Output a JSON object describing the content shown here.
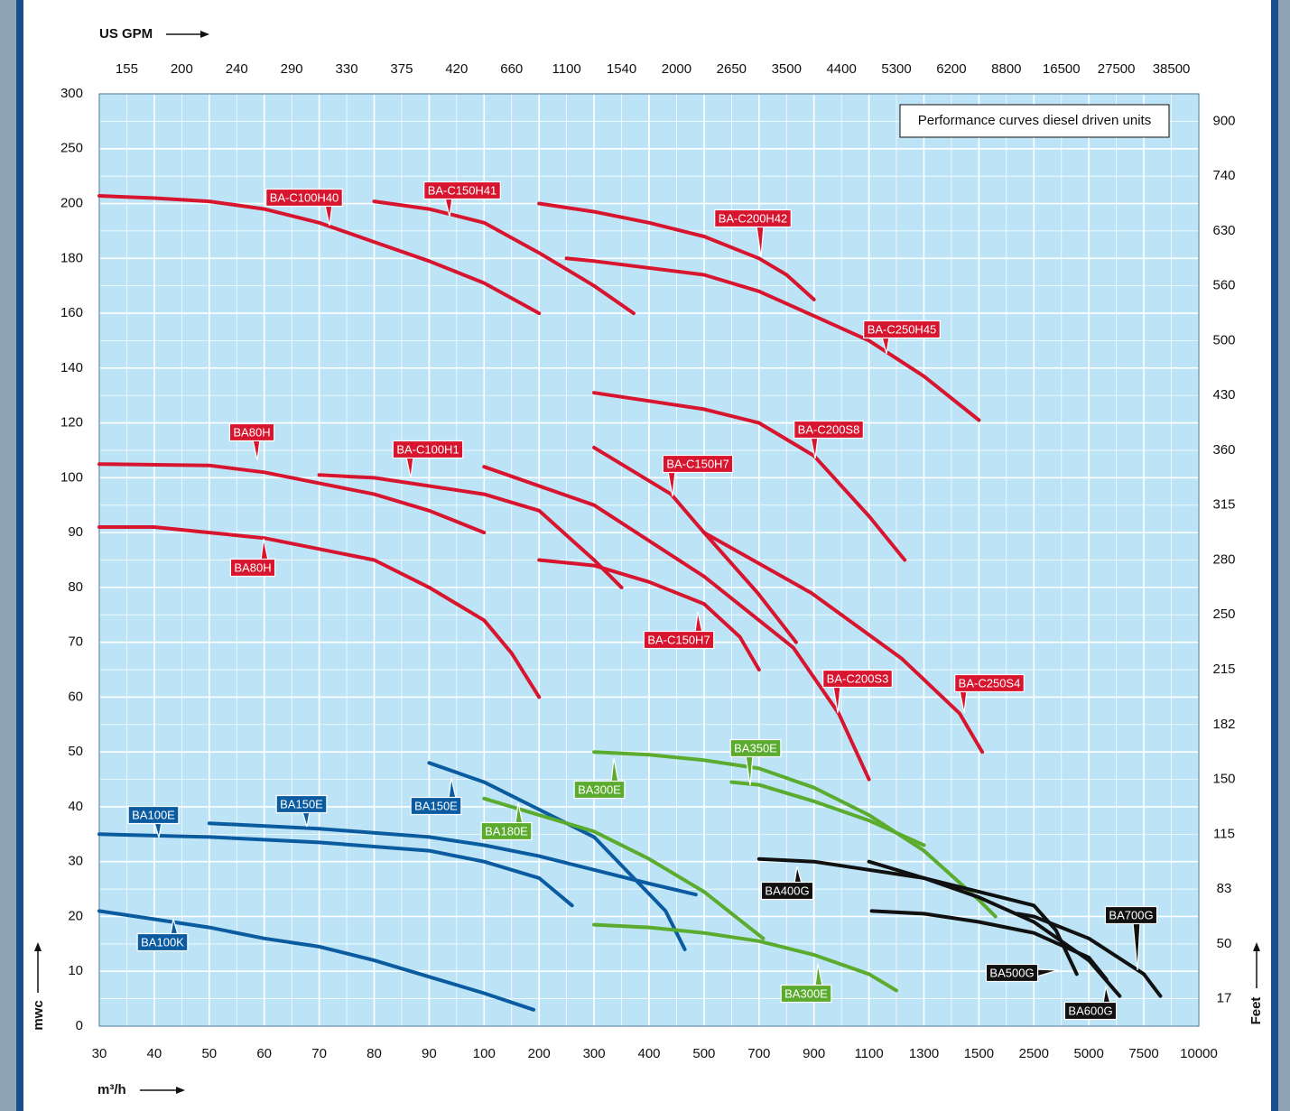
{
  "chart_data": {
    "type": "line",
    "title": "Performance curves diesel driven units",
    "x_label": "m³/h",
    "y_label": "mwc",
    "top_axis_label": "US GPM",
    "right_axis_label": "Feet",
    "x_scale": "segmented",
    "y_scale": "segmented",
    "grid": true,
    "xlim": [
      30,
      10000
    ],
    "ylim": [
      0,
      300
    ],
    "xticks": [
      30,
      40,
      50,
      60,
      70,
      80,
      90,
      100,
      200,
      300,
      400,
      500,
      700,
      900,
      1100,
      1300,
      1500,
      2500,
      5000,
      7500,
      10000
    ],
    "yticks": [
      0,
      10,
      20,
      30,
      40,
      50,
      60,
      70,
      80,
      90,
      100,
      120,
      140,
      160,
      180,
      200,
      250,
      300
    ],
    "gpm_labels": [
      155,
      200,
      240,
      290,
      330,
      375,
      420,
      660,
      1100,
      1540,
      2000,
      2650,
      3500,
      4400,
      5300,
      6200,
      8800,
      16500,
      27500,
      38500
    ],
    "feet_labels": [
      17,
      50,
      83,
      115,
      150,
      182,
      215,
      250,
      280,
      315,
      360,
      430,
      500,
      560,
      630,
      740,
      900
    ],
    "series": [
      {
        "name": "BA-C100H40",
        "color": "#d7152f",
        "x": [
          30,
          40,
          50,
          60,
          70,
          80,
          90,
          100,
          200
        ],
        "values": [
          207,
          205,
          202,
          198,
          193,
          186,
          179,
          171,
          160
        ]
      },
      {
        "name": "BA-C150H41",
        "color": "#d7152f",
        "x": [
          80,
          90,
          100,
          200,
          300,
          372
        ],
        "values": [
          202,
          198,
          193,
          182,
          170,
          160
        ]
      },
      {
        "name": "BA-C200H42",
        "color": "#d7152f",
        "x": [
          200,
          300,
          400,
          500,
          700,
          800,
          900
        ],
        "values": [
          200,
          197,
          193,
          188,
          180,
          174,
          165
        ]
      },
      {
        "name": "BA-C250H45",
        "color": "#d7152f",
        "x": [
          250,
          300,
          500,
          700,
          900,
          1100,
          1300,
          1500
        ],
        "values": [
          180,
          179,
          174,
          168,
          159,
          150,
          137,
          121
        ]
      },
      {
        "name": "BA-C200S8",
        "color": "#d7152f",
        "x": [
          300,
          500,
          700,
          900,
          1100,
          1230
        ],
        "values": [
          131,
          125,
          120,
          108,
          93,
          85
        ]
      },
      {
        "name": "BA80H",
        "color": "#d7152f",
        "x": [
          30,
          50,
          60,
          70,
          80,
          90,
          100
        ],
        "values": [
          105,
          104.5,
          102,
          99,
          97,
          94,
          90
        ]
      },
      {
        "name": "BA-C100H1",
        "color": "#d7152f",
        "x": [
          70,
          80,
          100,
          200,
          300,
          350
        ],
        "values": [
          101,
          100,
          97,
          94,
          85,
          80
        ]
      },
      {
        "name": "BA-C150H7",
        "color": "#d7152f",
        "x": [
          300,
          440,
          500,
          695,
          835
        ],
        "values": [
          111,
          97,
          90,
          79,
          70
        ]
      },
      {
        "name": "BA-C250S4",
        "color": "#d7152f",
        "x": [
          500,
          890,
          1220,
          1430,
          1560
        ],
        "values": [
          90,
          79,
          67,
          57,
          50
        ]
      },
      {
        "name": "BA-C200S3",
        "color": "#d7152f",
        "x": [
          100,
          300,
          500,
          825,
          990,
          1100
        ],
        "values": [
          104,
          95,
          82,
          69,
          57,
          45
        ]
      },
      {
        "name": "BA80H",
        "color": "#d7152f",
        "x": [
          30,
          40,
          50,
          60,
          70,
          80,
          90,
          100,
          150,
          200
        ],
        "values": [
          91,
          91,
          90,
          89,
          87,
          85,
          80,
          74,
          68,
          60
        ]
      },
      {
        "name": "BA-C150H7",
        "color": "#d7152f",
        "x": [
          200,
          300,
          400,
          500,
          630,
          700
        ],
        "values": [
          85,
          84,
          81,
          77,
          71,
          65
        ]
      },
      {
        "name": "BA100E",
        "color": "#0a5ba0",
        "x": [
          30,
          50,
          70,
          90,
          100,
          200,
          260
        ],
        "values": [
          35,
          34.5,
          33.5,
          32,
          30,
          27,
          22
        ]
      },
      {
        "name": "BA150E",
        "color": "#0a5ba0",
        "x": [
          50,
          70,
          90,
          100,
          200,
          300,
          400,
          485
        ],
        "values": [
          37,
          36,
          34.5,
          33,
          31,
          28.5,
          26,
          24
        ]
      },
      {
        "name": "BA150E",
        "color": "#0a5ba0",
        "x": [
          90,
          100,
          200,
          300,
          430,
          465
        ],
        "values": [
          48,
          44.5,
          39.5,
          34.5,
          21,
          14
        ]
      },
      {
        "name": "BA100K",
        "color": "#0a5ba0",
        "x": [
          30,
          40,
          50,
          60,
          70,
          80,
          90,
          100,
          190
        ],
        "values": [
          21,
          19.5,
          18,
          16,
          14.5,
          12,
          9,
          6,
          3
        ]
      },
      {
        "name": "BA180E",
        "color": "#5aab2e",
        "x": [
          100,
          200,
          300,
          400,
          500,
          715
        ],
        "values": [
          41.5,
          38.5,
          35.5,
          30.5,
          24.5,
          16
        ]
      },
      {
        "name": "BA300E",
        "color": "#5aab2e",
        "x": [
          300,
          400,
          500,
          700,
          900,
          1100,
          1300,
          1500,
          1800
        ],
        "values": [
          50,
          49.5,
          48.5,
          47,
          43.5,
          38.5,
          32,
          23,
          20
        ]
      },
      {
        "name": "BA350E",
        "color": "#5aab2e",
        "x": [
          600,
          700,
          900,
          1100,
          1300
        ],
        "values": [
          44.5,
          44,
          41,
          37.5,
          33
        ]
      },
      {
        "name": "BA300E",
        "color": "#5aab2e",
        "x": [
          300,
          400,
          500,
          700,
          900,
          1100,
          1200
        ],
        "values": [
          18.5,
          18,
          17,
          15.5,
          13,
          9.5,
          6.5
        ]
      },
      {
        "name": "BA400G",
        "color": "#111111",
        "x": [
          700,
          900,
          1100,
          1300,
          1500,
          2500,
          3500,
          4450
        ],
        "values": [
          30.5,
          30,
          28.5,
          27,
          24.5,
          22,
          17.5,
          9.5
        ]
      },
      {
        "name": "BA500G",
        "color": "#111111",
        "x": [
          1100,
          1300,
          1500,
          2500,
          5000,
          6400
        ],
        "values": [
          30,
          27,
          23.5,
          19,
          12,
          5.5
        ]
      },
      {
        "name": "BA600G",
        "color": "#111111",
        "x": [
          1110,
          1300,
          1500,
          2500,
          5000,
          5800
        ],
        "values": [
          21,
          20.5,
          19,
          17,
          12.5,
          8.5
        ]
      },
      {
        "name": "BA700G",
        "color": "#111111",
        "x": [
          2200,
          2500,
          5000,
          7500,
          8250
        ],
        "values": [
          20.5,
          20,
          16,
          9.5,
          5.5
        ]
      }
    ]
  }
}
